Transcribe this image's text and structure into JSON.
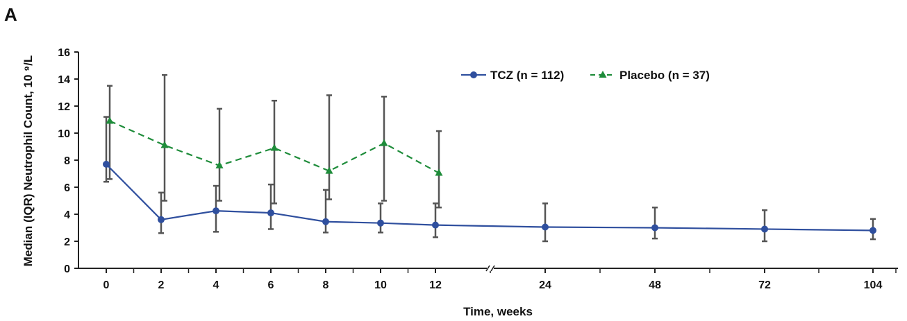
{
  "panel_label": "A",
  "chart_data": {
    "type": "line",
    "title": "",
    "xlabel": "Time, weeks",
    "ylabel": "Median (IQR) Neutrophil Count, 10 ⁹/L",
    "ylim": [
      0,
      16
    ],
    "y_ticks": [
      "0",
      "2",
      "4",
      "6",
      "8",
      "10",
      "12",
      "14",
      "16"
    ],
    "x_ticks": [
      "0",
      "2",
      "4",
      "6",
      "8",
      "10",
      "12",
      "24",
      "48",
      "72",
      "104"
    ],
    "axis_break_after": "12",
    "grid": false,
    "legend_position": "top",
    "series": [
      {
        "name": "TCZ (n = 112)",
        "color": "#2f4f9e",
        "marker": "circle",
        "line_style": "solid",
        "points": [
          {
            "x": "0",
            "y": 7.7,
            "q1": 6.4,
            "q3": 11.2
          },
          {
            "x": "2",
            "y": 3.6,
            "q1": 2.6,
            "q3": 5.6
          },
          {
            "x": "4",
            "y": 4.25,
            "q1": 2.7,
            "q3": 6.1
          },
          {
            "x": "6",
            "y": 4.1,
            "q1": 2.9,
            "q3": 6.2
          },
          {
            "x": "8",
            "y": 3.45,
            "q1": 2.65,
            "q3": 5.8
          },
          {
            "x": "10",
            "y": 3.35,
            "q1": 2.65,
            "q3": 4.8
          },
          {
            "x": "12",
            "y": 3.2,
            "q1": 2.3,
            "q3": 4.8
          },
          {
            "x": "24",
            "y": 3.05,
            "q1": 2.0,
            "q3": 4.8
          },
          {
            "x": "48",
            "y": 3.0,
            "q1": 2.2,
            "q3": 4.5
          },
          {
            "x": "72",
            "y": 2.9,
            "q1": 2.0,
            "q3": 4.3
          },
          {
            "x": "104",
            "y": 2.8,
            "q1": 2.15,
            "q3": 3.65
          }
        ]
      },
      {
        "name": "Placebo (n = 37)",
        "color": "#1e8c3a",
        "marker": "triangle",
        "line_style": "dashed",
        "points": [
          {
            "x": "0",
            "y": 10.9,
            "q1": 6.6,
            "q3": 13.5
          },
          {
            "x": "2",
            "y": 9.1,
            "q1": 5.0,
            "q3": 14.3
          },
          {
            "x": "4",
            "y": 7.6,
            "q1": 5.0,
            "q3": 11.8
          },
          {
            "x": "6",
            "y": 8.9,
            "q1": 4.8,
            "q3": 12.4
          },
          {
            "x": "8",
            "y": 7.2,
            "q1": 5.1,
            "q3": 12.8
          },
          {
            "x": "10",
            "y": 9.25,
            "q1": 5.0,
            "q3": 12.7
          },
          {
            "x": "12",
            "y": 7.05,
            "q1": 4.5,
            "q3": 10.15
          }
        ]
      }
    ]
  }
}
